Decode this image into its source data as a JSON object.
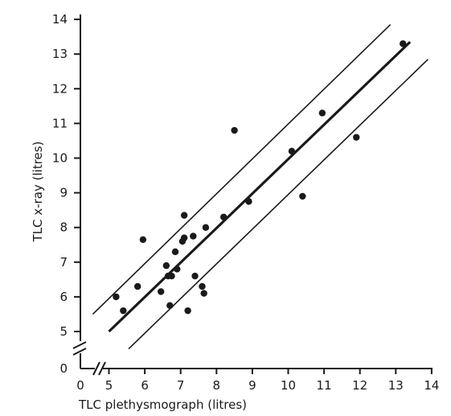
{
  "chart_data": {
    "type": "scatter",
    "xlabel": "TLC plethysmograph (litres)",
    "ylabel": "TLC x-ray (litres)",
    "xlim": [
      0,
      14
    ],
    "ylim": [
      4.5,
      14
    ],
    "x_ticks": [
      "0",
      "5",
      "6",
      "7",
      "8",
      "9",
      "10",
      "11",
      "12",
      "13",
      "14"
    ],
    "y_ticks": [
      "0",
      "5",
      "6",
      "7",
      "8",
      "9",
      "10",
      "11",
      "12",
      "13",
      "14"
    ],
    "axis_break": "both axes broken near origin (0 to 5 litres omitted)",
    "grid": false,
    "legend": "none",
    "points": [
      {
        "x": 5.2,
        "y": 6.0
      },
      {
        "x": 5.4,
        "y": 5.6
      },
      {
        "x": 5.8,
        "y": 6.3
      },
      {
        "x": 5.95,
        "y": 7.65
      },
      {
        "x": 6.45,
        "y": 6.15
      },
      {
        "x": 6.6,
        "y": 6.9
      },
      {
        "x": 6.65,
        "y": 6.6
      },
      {
        "x": 6.7,
        "y": 5.75
      },
      {
        "x": 6.75,
        "y": 6.6
      },
      {
        "x": 6.85,
        "y": 7.3
      },
      {
        "x": 6.9,
        "y": 6.8
      },
      {
        "x": 7.05,
        "y": 7.6
      },
      {
        "x": 7.1,
        "y": 7.7
      },
      {
        "x": 7.1,
        "y": 8.35
      },
      {
        "x": 7.2,
        "y": 5.6
      },
      {
        "x": 7.35,
        "y": 7.75
      },
      {
        "x": 7.4,
        "y": 6.6
      },
      {
        "x": 7.6,
        "y": 6.3
      },
      {
        "x": 7.65,
        "y": 6.1
      },
      {
        "x": 7.7,
        "y": 8.0
      },
      {
        "x": 8.2,
        "y": 8.3
      },
      {
        "x": 8.5,
        "y": 10.8
      },
      {
        "x": 8.9,
        "y": 8.75
      },
      {
        "x": 10.1,
        "y": 10.2
      },
      {
        "x": 10.4,
        "y": 8.9
      },
      {
        "x": 10.95,
        "y": 11.3
      },
      {
        "x": 11.9,
        "y": 10.6
      },
      {
        "x": 13.2,
        "y": 13.3
      }
    ],
    "lines": [
      {
        "role": "regression",
        "weight": "bold",
        "from": [
          5.0,
          5.0
        ],
        "to": [
          13.4,
          13.35
        ]
      },
      {
        "role": "upper-limit",
        "weight": "thin",
        "from": [
          4.55,
          5.5
        ],
        "to": [
          12.85,
          13.85
        ]
      },
      {
        "role": "lower-limit",
        "weight": "thin",
        "from": [
          5.55,
          4.5
        ],
        "to": [
          13.9,
          12.85
        ]
      }
    ],
    "colors": {
      "ink": "#1a1a1a",
      "background": "#ffffff"
    }
  }
}
